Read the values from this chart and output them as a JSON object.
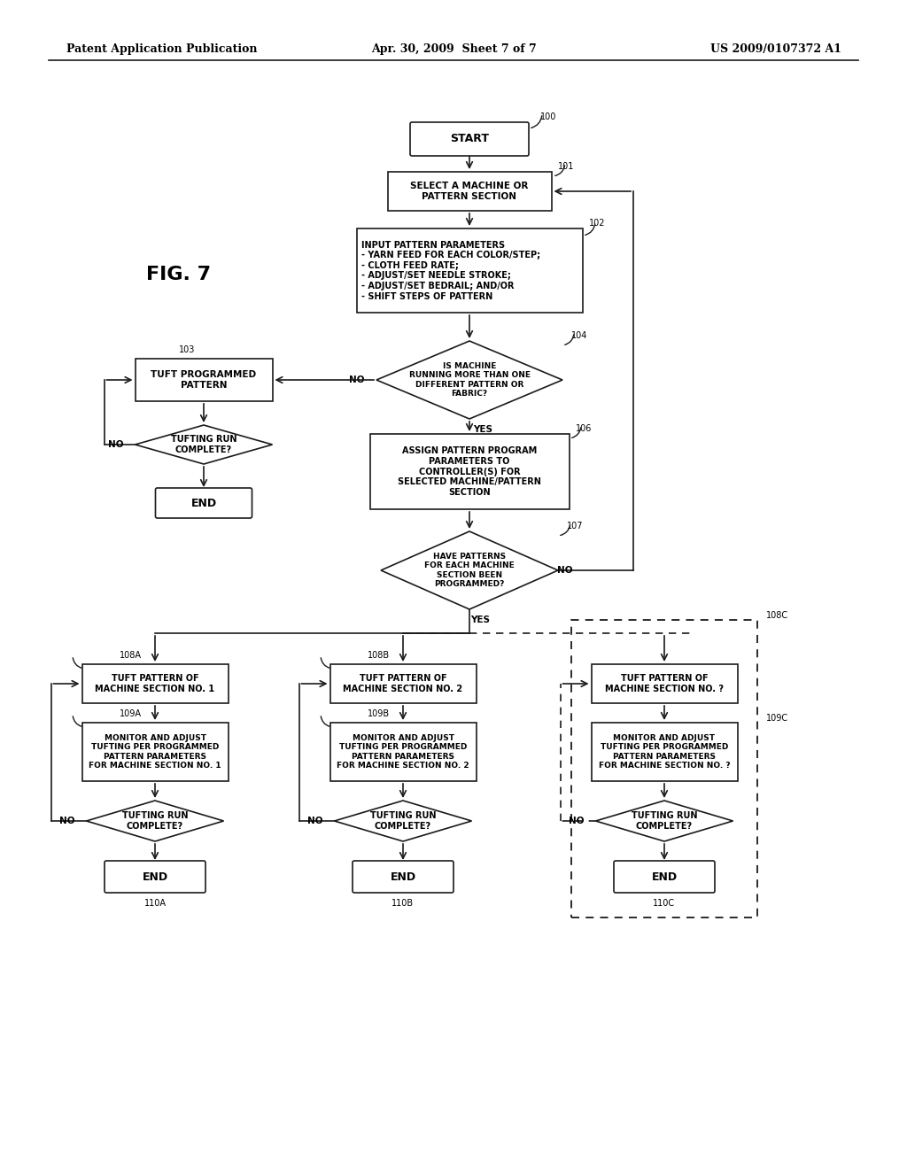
{
  "title_left": "Patent Application Publication",
  "title_center": "Apr. 30, 2009  Sheet 7 of 7",
  "title_right": "US 2009/0107372 A1",
  "fig_label": "FIG. 7",
  "background": "#ffffff",
  "line_color": "#1a1a1a",
  "text_color": "#000000"
}
